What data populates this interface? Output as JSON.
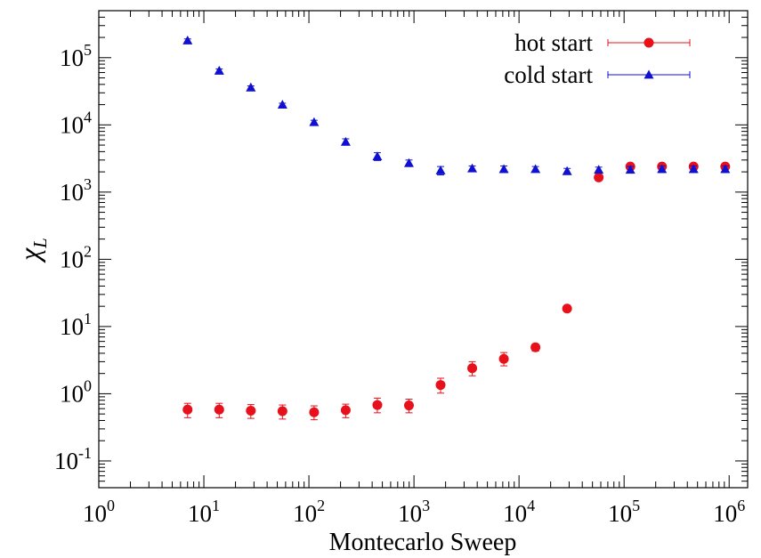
{
  "chart_data": {
    "type": "scatter",
    "xlabel": "Montecarlo Sweep",
    "ylabel": "χ",
    "ylabel_sub": "L",
    "xscale": "log",
    "yscale": "log",
    "xlim": [
      1,
      1500000
    ],
    "ylim": [
      0.04,
      500000
    ],
    "x_ticks": [
      {
        "base": "10",
        "exp": "0",
        "value": 1
      },
      {
        "base": "10",
        "exp": "1",
        "value": 10
      },
      {
        "base": "10",
        "exp": "2",
        "value": 100
      },
      {
        "base": "10",
        "exp": "3",
        "value": 1000
      },
      {
        "base": "10",
        "exp": "4",
        "value": 10000
      },
      {
        "base": "10",
        "exp": "5",
        "value": 100000
      },
      {
        "base": "10",
        "exp": "6",
        "value": 1000000
      }
    ],
    "y_ticks": [
      {
        "base": "10",
        "exp": "-1",
        "value": 0.1
      },
      {
        "base": "10",
        "exp": "0",
        "value": 1
      },
      {
        "base": "10",
        "exp": "1",
        "value": 10
      },
      {
        "base": "10",
        "exp": "2",
        "value": 100
      },
      {
        "base": "10",
        "exp": "3",
        "value": 1000
      },
      {
        "base": "10",
        "exp": "4",
        "value": 10000
      },
      {
        "base": "10",
        "exp": "5",
        "value": 100000
      }
    ],
    "grid": false,
    "legend_position": "top-right",
    "series": [
      {
        "name": "hot start",
        "color": "#e8101a",
        "marker": "circle",
        "points": [
          {
            "x": 7,
            "y": 0.58,
            "lo": 0.44,
            "hi": 0.72
          },
          {
            "x": 14,
            "y": 0.58,
            "lo": 0.44,
            "hi": 0.72
          },
          {
            "x": 28,
            "y": 0.56,
            "lo": 0.43,
            "hi": 0.69
          },
          {
            "x": 56,
            "y": 0.55,
            "lo": 0.42,
            "hi": 0.68
          },
          {
            "x": 112,
            "y": 0.53,
            "lo": 0.41,
            "hi": 0.66
          },
          {
            "x": 224,
            "y": 0.57,
            "lo": 0.44,
            "hi": 0.7
          },
          {
            "x": 448,
            "y": 0.68,
            "lo": 0.52,
            "hi": 0.86
          },
          {
            "x": 896,
            "y": 0.67,
            "lo": 0.52,
            "hi": 0.83
          },
          {
            "x": 1792,
            "y": 1.35,
            "lo": 1.02,
            "hi": 1.7
          },
          {
            "x": 3584,
            "y": 2.4,
            "lo": 1.85,
            "hi": 3.0
          },
          {
            "x": 7168,
            "y": 3.3,
            "lo": 2.6,
            "hi": 4.1
          },
          {
            "x": 14336,
            "y": 4.9,
            "lo": 4.3,
            "hi": 5.5
          },
          {
            "x": 28672,
            "y": 18.5,
            "lo": 17.5,
            "hi": 19.5
          },
          {
            "x": 57344,
            "y": 1650,
            "lo": 1550,
            "hi": 1750
          },
          {
            "x": 114688,
            "y": 2400,
            "lo": 2300,
            "hi": 2500
          },
          {
            "x": 229376,
            "y": 2400,
            "lo": 2300,
            "hi": 2500
          },
          {
            "x": 458752,
            "y": 2400,
            "lo": 2300,
            "hi": 2500
          },
          {
            "x": 917504,
            "y": 2400,
            "lo": 2300,
            "hi": 2500
          }
        ]
      },
      {
        "name": "cold start",
        "color": "#1010d0",
        "marker": "triangle",
        "points": [
          {
            "x": 7,
            "y": 180000,
            "lo": 170000,
            "hi": 190000
          },
          {
            "x": 14,
            "y": 64000,
            "lo": 60000,
            "hi": 68000
          },
          {
            "x": 28,
            "y": 36000,
            "lo": 34000,
            "hi": 38000
          },
          {
            "x": 56,
            "y": 20000,
            "lo": 19000,
            "hi": 21000
          },
          {
            "x": 112,
            "y": 11000,
            "lo": 10300,
            "hi": 11700
          },
          {
            "x": 224,
            "y": 5600,
            "lo": 5000,
            "hi": 6200
          },
          {
            "x": 448,
            "y": 3400,
            "lo": 2950,
            "hi": 3850
          },
          {
            "x": 896,
            "y": 2700,
            "lo": 2400,
            "hi": 3000
          },
          {
            "x": 1792,
            "y": 2100,
            "lo": 1800,
            "hi": 2400
          },
          {
            "x": 3584,
            "y": 2250,
            "lo": 2050,
            "hi": 2450
          },
          {
            "x": 7168,
            "y": 2200,
            "lo": 1950,
            "hi": 2450
          },
          {
            "x": 14336,
            "y": 2200,
            "lo": 2000,
            "hi": 2400
          },
          {
            "x": 28672,
            "y": 2050,
            "lo": 1850,
            "hi": 2250
          },
          {
            "x": 57344,
            "y": 2150,
            "lo": 1950,
            "hi": 2350
          },
          {
            "x": 114688,
            "y": 2150,
            "lo": 1950,
            "hi": 2400
          },
          {
            "x": 229376,
            "y": 2200,
            "lo": 1950,
            "hi": 2450
          },
          {
            "x": 458752,
            "y": 2200,
            "lo": 1950,
            "hi": 2450
          },
          {
            "x": 917504,
            "y": 2200,
            "lo": 1950,
            "hi": 2450
          }
        ]
      }
    ]
  }
}
